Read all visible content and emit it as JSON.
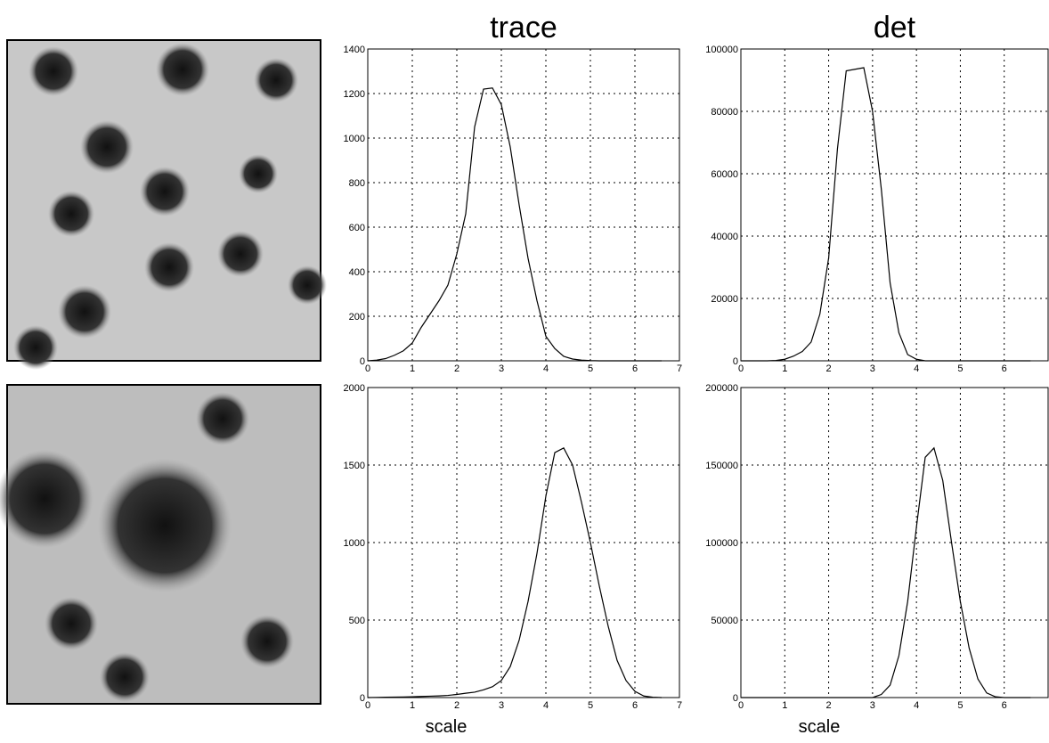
{
  "chart_data": [
    {
      "type": "line",
      "title": "trace",
      "color": "#000000",
      "grid": true,
      "x": [
        0,
        0.2,
        0.4,
        0.6,
        0.8,
        1,
        1.2,
        1.4,
        1.6,
        1.8,
        2,
        2.2,
        2.4,
        2.6,
        2.8,
        3,
        3.2,
        3.4,
        3.6,
        3.8,
        4,
        4.2,
        4.4,
        4.6,
        4.8,
        5,
        5.2,
        5.4,
        5.6,
        5.8,
        6,
        6.2,
        6.4,
        6.6
      ],
      "values": [
        0,
        3,
        10,
        25,
        45,
        80,
        150,
        210,
        270,
        340,
        480,
        660,
        1050,
        1220,
        1225,
        1150,
        960,
        700,
        460,
        270,
        110,
        55,
        20,
        8,
        3,
        1,
        0,
        0,
        0,
        0,
        0,
        0,
        0,
        0
      ],
      "xlim": [
        0,
        7
      ],
      "ylim": [
        0,
        1400
      ],
      "xticks": [
        0,
        1,
        2,
        3,
        4,
        5,
        6,
        7
      ],
      "yticks": [
        0,
        200,
        400,
        600,
        800,
        1000,
        1200,
        1400
      ]
    },
    {
      "type": "line",
      "title": "det",
      "color": "#000000",
      "grid": true,
      "x": [
        0,
        0.2,
        0.4,
        0.6,
        0.8,
        1,
        1.2,
        1.4,
        1.6,
        1.8,
        2,
        2.2,
        2.4,
        2.6,
        2.8,
        3,
        3.2,
        3.4,
        3.6,
        3.8,
        4,
        4.2,
        4.4,
        4.6,
        4.8,
        5,
        5.2,
        5.4,
        5.6,
        5.8,
        6,
        6.2,
        6.4,
        6.6
      ],
      "values": [
        0,
        0,
        0,
        0,
        100,
        500,
        1500,
        3000,
        6000,
        15000,
        33000,
        68000,
        93000,
        93500,
        94000,
        80000,
        55000,
        25000,
        9000,
        2000,
        500,
        0,
        0,
        0,
        0,
        0,
        0,
        0,
        0,
        0,
        0,
        0,
        0,
        0
      ],
      "xlim": [
        0,
        7
      ],
      "ylim": [
        0,
        100000
      ],
      "xticks": [
        0,
        1,
        2,
        3,
        4,
        5,
        6
      ],
      "yticks": [
        0,
        20000,
        40000,
        60000,
        80000,
        100000
      ]
    },
    {
      "type": "line",
      "xlabel": "scale",
      "color": "#000000",
      "grid": true,
      "x": [
        0,
        0.2,
        0.4,
        0.6,
        0.8,
        1,
        1.2,
        1.4,
        1.6,
        1.8,
        2,
        2.2,
        2.4,
        2.6,
        2.8,
        3,
        3.2,
        3.4,
        3.6,
        3.8,
        4,
        4.2,
        4.4,
        4.6,
        4.8,
        5,
        5.2,
        5.4,
        5.6,
        5.8,
        6,
        6.2,
        6.4,
        6.6
      ],
      "values": [
        0,
        1,
        2,
        3,
        4,
        5,
        7,
        9,
        11,
        14,
        20,
        28,
        35,
        50,
        70,
        110,
        200,
        370,
        620,
        930,
        1300,
        1580,
        1610,
        1500,
        1260,
        1000,
        720,
        460,
        240,
        110,
        40,
        10,
        2,
        0
      ],
      "xlim": [
        0,
        7
      ],
      "ylim": [
        0,
        2000
      ],
      "xticks": [
        0,
        1,
        2,
        3,
        4,
        5,
        6,
        7
      ],
      "yticks": [
        0,
        500,
        1000,
        1500,
        2000
      ]
    },
    {
      "type": "line",
      "xlabel": "scale",
      "color": "#000000",
      "grid": true,
      "x": [
        0,
        0.2,
        0.4,
        0.6,
        0.8,
        1,
        1.2,
        1.4,
        1.6,
        1.8,
        2,
        2.2,
        2.4,
        2.6,
        2.8,
        3,
        3.2,
        3.4,
        3.6,
        3.8,
        4,
        4.2,
        4.4,
        4.6,
        4.8,
        5,
        5.2,
        5.4,
        5.6,
        5.8,
        6,
        6.2,
        6.4,
        6.6
      ],
      "values": [
        0,
        0,
        0,
        0,
        0,
        0,
        0,
        0,
        0,
        0,
        0,
        0,
        0,
        0,
        0,
        0,
        2000,
        8000,
        27000,
        62000,
        110000,
        155000,
        161000,
        140000,
        100000,
        62000,
        32000,
        12000,
        3000,
        500,
        0,
        0,
        0,
        0
      ],
      "xlim": [
        0,
        7
      ],
      "ylim": [
        0,
        200000
      ],
      "xticks": [
        0,
        1,
        2,
        3,
        4,
        5,
        6
      ],
      "yticks": [
        0,
        50000,
        100000,
        150000,
        200000
      ]
    }
  ]
}
